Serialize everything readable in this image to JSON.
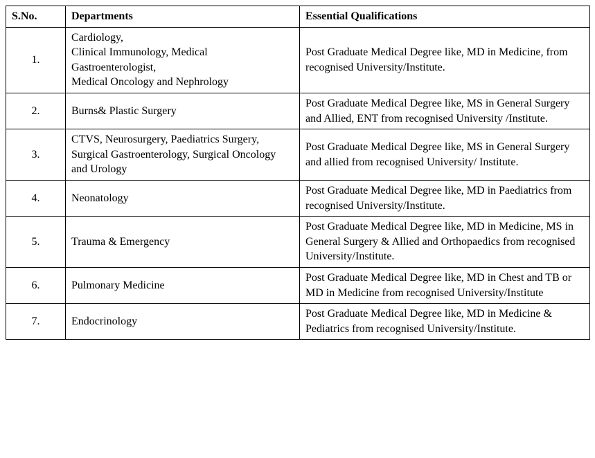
{
  "table": {
    "columns": {
      "sno": "S.No.",
      "departments": "Departments",
      "qualifications": "Essential Qualifications"
    },
    "rows": [
      {
        "sno": "1.",
        "dept_lines": [
          "Cardiology,",
          "Clinical Immunology, Medical Gastroenterologist,",
          "Medical Oncology and Nephrology"
        ],
        "qual": "Post Graduate Medical Degree like, MD in Medicine, from recognised University/Institute."
      },
      {
        "sno": "2.",
        "dept": "Burns& Plastic Surgery",
        "qual": "Post Graduate Medical Degree like, MS in General Surgery and Allied, ENT from recognised University /Institute."
      },
      {
        "sno": "3.",
        "dept": "CTVS, Neurosurgery, Paediatrics Surgery, Surgical Gastroenterology, Surgical Oncology and Urology",
        "qual": "Post Graduate Medical Degree like, MS in General Surgery and allied from recognised University/ Institute."
      },
      {
        "sno": "4.",
        "dept": "Neonatology",
        "qual": "Post Graduate Medical Degree like, MD in Paediatrics from recognised University/Institute."
      },
      {
        "sno": "5.",
        "dept": "Trauma & Emergency",
        "qual": "Post Graduate Medical Degree like, MD in Medicine, MS in General Surgery & Allied and Orthopaedics from recognised University/Institute."
      },
      {
        "sno": "6.",
        "dept": "Pulmonary Medicine",
        "qual": "Post Graduate Medical Degree like, MD in Chest and TB or MD in Medicine from recognised University/Institute"
      },
      {
        "sno": "7.",
        "dept": "Endocrinology",
        "qual": "Post Graduate Medical Degree like, MD in Medicine & Pediatrics from recognised University/Institute."
      }
    ]
  }
}
